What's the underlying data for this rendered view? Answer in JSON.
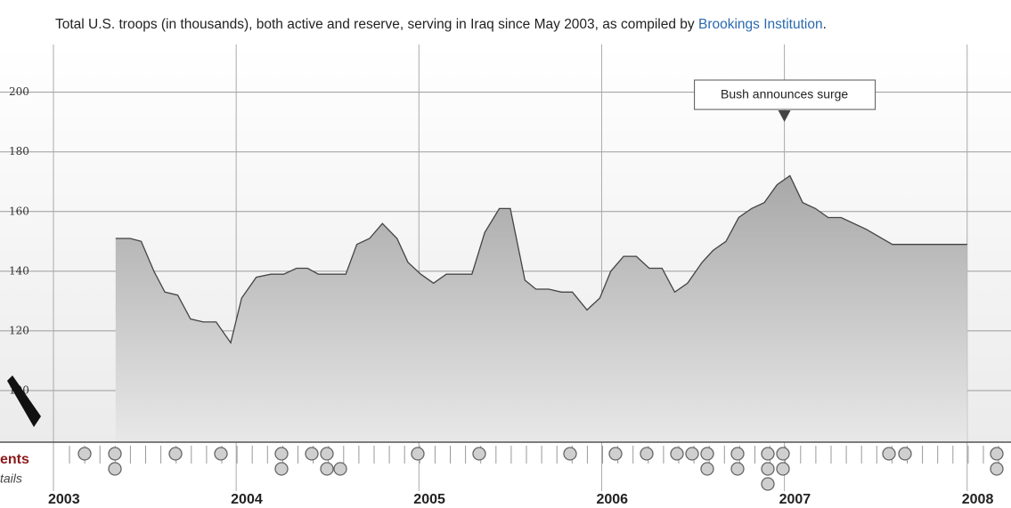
{
  "chart_data": {
    "type": "area",
    "title": "Total U.S. troops (in thousands), both active and reserve, serving in Iraq since May 2003, as compiled by ",
    "title_link": "Brookings Institution",
    "title_end": ".",
    "x": [
      2003.34,
      2003.42,
      2003.48,
      2003.55,
      2003.61,
      2003.68,
      2003.75,
      2003.82,
      2003.89,
      2003.97,
      2004.03,
      2004.11,
      2004.19,
      2004.26,
      2004.33,
      2004.39,
      2004.45,
      2004.6,
      2004.66,
      2004.73,
      2004.8,
      2004.88,
      2004.94,
      2005.01,
      2005.08,
      2005.15,
      2005.29,
      2005.36,
      2005.44,
      2005.5,
      2005.58,
      2005.64,
      2005.71,
      2005.78,
      2005.84,
      2005.92,
      2005.99,
      2006.05,
      2006.12,
      2006.19,
      2006.26,
      2006.33,
      2006.4,
      2006.47,
      2006.55,
      2006.61,
      2006.68,
      2006.75,
      2006.82,
      2006.89,
      2006.96,
      2007.03,
      2007.1,
      2007.17,
      2007.24,
      2007.31,
      2007.45,
      2007.59,
      2008.0
    ],
    "values": [
      151,
      151,
      150,
      140,
      133,
      132,
      124,
      123,
      123,
      116,
      131,
      138,
      139,
      139,
      141,
      141,
      139,
      139,
      149,
      151,
      156,
      151,
      143,
      139,
      136,
      139,
      139,
      153,
      161,
      161,
      137,
      134,
      134,
      133,
      133,
      127,
      131,
      140,
      145,
      145,
      141,
      141,
      133,
      136,
      143,
      147,
      150,
      158,
      161,
      163,
      169,
      172,
      163,
      161,
      158,
      158,
      154,
      149,
      149
    ],
    "color": "#444444",
    "xlim": [
      2003,
      2008.24
    ],
    "xticks": [
      2003,
      2004,
      2005,
      2006,
      2007,
      2008
    ],
    "ylim": [
      82.7,
      216
    ],
    "yticks": [
      100,
      120,
      140,
      160,
      180,
      200
    ],
    "grid": true,
    "annotations": [
      {
        "text": "Bush announces surge",
        "x": 2007
      }
    ],
    "side_labels": [
      "ents",
      "tails"
    ]
  }
}
